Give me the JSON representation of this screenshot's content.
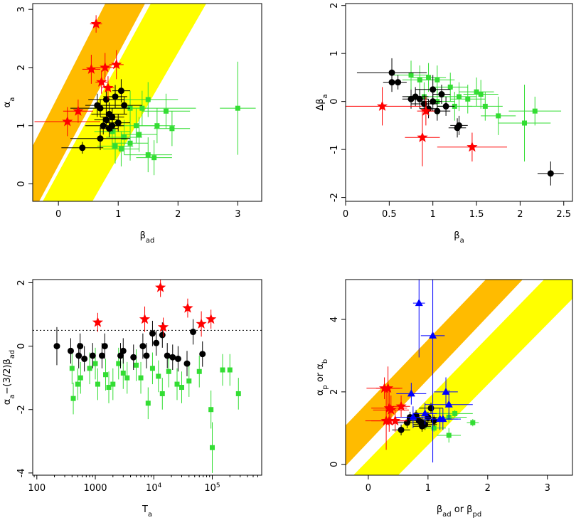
{
  "chart_data": [
    {
      "type": "scatter",
      "xlabel": [
        {
          "t": "β"
        },
        {
          "t": "ad",
          "sub": true
        }
      ],
      "ylabel": [
        {
          "t": "α"
        },
        {
          "t": "a",
          "sub": true
        }
      ],
      "xlim": [
        -0.43,
        3.4
      ],
      "ylim": [
        -0.3,
        3.1
      ],
      "xticks": [
        0,
        1,
        2,
        3
      ],
      "yticks": [
        0,
        1,
        2,
        3
      ],
      "series": [
        {
          "color": "#33dd33",
          "marker": "square",
          "x": [
            3.0,
            1.2,
            1.5,
            1.6,
            1.3,
            1.4,
            1.9,
            1.65,
            1.1,
            0.95,
            1.05,
            1.5,
            1.2,
            1.8,
            0.9,
            1.35
          ],
          "values": [
            1.3,
            0.7,
            0.5,
            0.45,
            1.0,
            1.3,
            0.95,
            1.0,
            0.8,
            0.65,
            0.6,
            1.45,
            1.3,
            1.25,
            0.9,
            0.85
          ],
          "xerr": [
            0.3,
            0.3,
            0.4,
            0.3,
            0.4,
            0.9,
            0.3,
            0.3,
            0.3,
            0.3,
            0.3,
            0.5,
            0.3,
            0.4,
            0.3,
            0.3
          ],
          "yerr": [
            0.8,
            0.3,
            0.3,
            0.3,
            0.3,
            0.3,
            0.3,
            0.3,
            0.3,
            0.3,
            0.3,
            0.3,
            0.3,
            0.3,
            0.3,
            0.3
          ]
        },
        {
          "color": "#000000",
          "marker": "circle",
          "x": [
            0.4,
            0.7,
            0.75,
            0.8,
            0.85,
            0.9,
            0.95,
            1.05,
            0.8,
            0.7,
            0.65,
            1.1,
            0.9,
            0.85,
            1.0
          ],
          "values": [
            0.62,
            0.78,
            1.0,
            1.1,
            1.2,
            1.15,
            1.5,
            1.6,
            1.45,
            1.3,
            1.35,
            1.35,
            1.0,
            0.95,
            1.05
          ],
          "xerr": [
            0.35,
            0.5,
            0.3,
            0.2,
            0.3,
            0.2,
            0.2,
            0.15,
            0.3,
            0.5,
            0.2,
            0.3,
            0.2,
            0.15,
            0.2
          ],
          "yerr": [
            0.1,
            0.2,
            0.15,
            0.15,
            0.2,
            0.15,
            0.2,
            0.2,
            0.2,
            0.15,
            0.2,
            0.15,
            0.1,
            0.15,
            0.15
          ]
        },
        {
          "color": "#ff0000",
          "marker": "star",
          "x": [
            0.63,
            0.55,
            0.78,
            0.97,
            0.72,
            0.83,
            0.33,
            0.15
          ],
          "values": [
            2.75,
            1.97,
            2.0,
            2.05,
            1.75,
            1.65,
            1.25,
            1.07
          ],
          "xerr": [
            0.1,
            0.15,
            0.15,
            0.12,
            0.1,
            0.1,
            0.25,
            0.55
          ],
          "yerr": [
            0.15,
            0.25,
            0.25,
            0.25,
            0.2,
            0.2,
            0.2,
            0.25
          ]
        }
      ]
    },
    {
      "type": "scatter",
      "xlabel": [
        {
          "t": "β"
        },
        {
          "t": "a",
          "sub": true
        }
      ],
      "ylabel": [
        {
          "t": "Δβ"
        },
        {
          "t": "a",
          "sub": true
        }
      ],
      "xlim": [
        0,
        2.6
      ],
      "ylim": [
        -2.08,
        2.04
      ],
      "xticks": [
        0,
        0.5,
        1,
        1.5,
        2,
        2.5
      ],
      "yticks": [
        -2,
        -1,
        0,
        1,
        2
      ],
      "series": [
        {
          "color": "#33dd33",
          "marker": "square",
          "x": [
            0.75,
            0.85,
            0.95,
            1.05,
            1.2,
            1.55,
            1.5,
            1.75,
            2.05,
            2.17,
            1.4,
            1.3,
            1.6,
            0.9,
            1.25,
            1.05
          ],
          "values": [
            0.55,
            0.45,
            0.5,
            0.45,
            0.3,
            0.15,
            0.2,
            -0.3,
            -0.45,
            -0.2,
            0.05,
            0.1,
            -0.1,
            0.1,
            -0.1,
            0.0
          ],
          "xerr": [
            0.2,
            0.2,
            0.2,
            0.2,
            0.2,
            0.2,
            0.2,
            0.2,
            0.3,
            0.3,
            0.2,
            0.2,
            0.2,
            0.2,
            0.2,
            0.2
          ],
          "yerr": [
            0.3,
            0.3,
            0.3,
            0.3,
            0.3,
            0.3,
            0.3,
            0.4,
            0.8,
            0.3,
            0.3,
            0.3,
            0.3,
            0.3,
            0.3,
            0.3
          ]
        },
        {
          "color": "#000000",
          "marker": "circle",
          "x": [
            0.53,
            0.53,
            0.6,
            0.8,
            0.9,
            0.95,
            1.0,
            1.05,
            1.1,
            1.15,
            0.85,
            1.3,
            1.28,
            2.35,
            1.0,
            0.75
          ],
          "values": [
            0.6,
            0.4,
            0.4,
            0.1,
            -0.05,
            -0.15,
            0.25,
            -0.2,
            0.15,
            -0.1,
            0.05,
            -0.5,
            -0.55,
            -1.5,
            0.0,
            0.05
          ],
          "xerr": [
            0.4,
            0.1,
            0.1,
            0.15,
            0.15,
            0.1,
            0.2,
            0.15,
            0.1,
            0.1,
            0.1,
            0.1,
            0.1,
            0.15,
            0.1,
            0.1
          ],
          "yerr": [
            0.3,
            0.2,
            0.15,
            0.2,
            0.2,
            0.2,
            0.3,
            0.2,
            0.2,
            0.2,
            0.2,
            0.2,
            0.2,
            0.25,
            0.2,
            0.2
          ]
        },
        {
          "color": "#ff0000",
          "marker": "star",
          "x": [
            0.42,
            0.88,
            1.45,
            0.92
          ],
          "values": [
            -0.1,
            -0.75,
            -0.95,
            -0.2
          ],
          "xerr": [
            0.45,
            0.2,
            0.4,
            0.1
          ],
          "yerr": [
            0.4,
            0.6,
            0.3,
            0.3
          ]
        }
      ]
    },
    {
      "type": "scatter",
      "xlog": true,
      "hline": 0.5,
      "xlabel": [
        {
          "t": "T"
        },
        {
          "t": "a",
          "sub": true
        }
      ],
      "ylabel": [
        {
          "t": "α"
        },
        {
          "t": "a",
          "sub": true
        },
        {
          "t": "−(3/2)β"
        },
        {
          "t": "ad",
          "sub": true
        }
      ],
      "xlim": [
        85,
        700000
      ],
      "ylim": [
        -4.07,
        2.1
      ],
      "xticks": [
        100,
        1000,
        {
          "value": 10000,
          "label": "10",
          "exp": "4"
        },
        {
          "value": 100000,
          "label": "10",
          "exp": "5"
        }
      ],
      "yticks": [
        -4,
        -2,
        0,
        2
      ],
      "series": [
        {
          "color": "#33dd33",
          "marker": "square",
          "x": [
            400,
            420,
            500,
            560,
            800,
            1000,
            1100,
            1500,
            1700,
            2000,
            2500,
            3000,
            3500,
            5000,
            6000,
            8000,
            9500,
            12000,
            14000,
            18000,
            25000,
            30000,
            40000,
            60000,
            95000,
            100000,
            150000,
            200000,
            280000
          ],
          "values": [
            -0.7,
            -1.65,
            -1.2,
            -1.0,
            -0.7,
            -0.55,
            -1.2,
            -0.9,
            -1.3,
            -1.2,
            -0.55,
            -0.85,
            -1.0,
            -0.6,
            -1.0,
            -1.8,
            -0.7,
            -0.95,
            -1.5,
            -0.8,
            -1.2,
            -1.3,
            -1.1,
            -0.8,
            -2.0,
            -3.2,
            -0.75,
            -0.75,
            -1.5
          ],
          "yerr": [
            0.5,
            0.5,
            0.5,
            0.5,
            0.5,
            0.5,
            0.5,
            0.5,
            0.5,
            0.5,
            0.5,
            0.5,
            0.5,
            0.5,
            0.5,
            0.5,
            0.5,
            0.5,
            0.5,
            0.5,
            0.5,
            0.5,
            0.5,
            0.5,
            0.6,
            0.8,
            0.5,
            0.5,
            0.5
          ]
        },
        {
          "color": "#000000",
          "marker": "circle",
          "x": [
            220,
            380,
            520,
            550,
            650,
            900,
            1300,
            1450,
            2700,
            3000,
            4500,
            6500,
            7500,
            9500,
            11000,
            14000,
            17000,
            21000,
            26000,
            37000,
            47000,
            68000
          ],
          "values": [
            0,
            -0.15,
            -0.3,
            0,
            -0.4,
            -0.3,
            -0.3,
            0,
            -0.3,
            -0.15,
            -0.35,
            0,
            -0.3,
            0.4,
            0.1,
            0.35,
            -0.3,
            -0.35,
            -0.4,
            -0.55,
            0.45,
            -0.25
          ],
          "yerr": [
            0.6,
            0.4,
            0.4,
            0.4,
            0.4,
            0.4,
            0.4,
            0.4,
            0.4,
            0.4,
            0.4,
            0.4,
            0.4,
            0.4,
            0.4,
            0.4,
            0.4,
            0.4,
            0.4,
            0.4,
            0.4,
            0.4
          ]
        },
        {
          "color": "#ff0000",
          "marker": "star",
          "x": [
            1100,
            7000,
            13000,
            14500,
            38000,
            65000,
            95000
          ],
          "values": [
            0.75,
            0.85,
            1.85,
            0.6,
            1.2,
            0.7,
            0.85
          ],
          "yerr": [
            0.3,
            0.4,
            0.3,
            0.3,
            0.3,
            0.4,
            0.3
          ]
        }
      ]
    },
    {
      "type": "scatter",
      "xlabel": [
        {
          "t": "β"
        },
        {
          "t": "ad",
          "sub": true
        },
        {
          "t": " or β"
        },
        {
          "t": "pd",
          "sub": true
        }
      ],
      "ylabel": [
        {
          "t": "α"
        },
        {
          "t": "p",
          "sub": true
        },
        {
          "t": " or α"
        },
        {
          "t": "b",
          "sub": true
        }
      ],
      "xlim": [
        -0.38,
        3.42
      ],
      "ylim": [
        -0.3,
        5.1
      ],
      "xticks": [
        0,
        1,
        2,
        3
      ],
      "yticks": [
        0,
        2,
        4
      ],
      "series": [
        {
          "color": "#33dd33",
          "marker": "square",
          "x": [
            1.35,
            1.45,
            1.75,
            1.35,
            1.1
          ],
          "values": [
            1.3,
            1.4,
            1.15,
            0.8,
            1.0
          ],
          "xerr": [
            0.3,
            0.3,
            0.1,
            0.2,
            0.2
          ],
          "yerr": [
            0.15,
            0.1,
            0.1,
            0.2,
            0.1
          ]
        },
        {
          "color": "#000000",
          "marker": "circle",
          "x": [
            0.55,
            0.65,
            0.7,
            0.85,
            0.9,
            0.95,
            1.0,
            1.05,
            0.8,
            1.1,
            0.9
          ],
          "values": [
            0.95,
            1.15,
            1.3,
            1.2,
            1.15,
            1.1,
            1.3,
            1.55,
            1.35,
            1.2,
            1.05
          ],
          "xerr": [
            0.15,
            0.2,
            0.15,
            0.2,
            0.15,
            0.2,
            0.15,
            0.2,
            0.15,
            0.2,
            0.15
          ],
          "yerr": [
            0.15,
            0.15,
            0.15,
            0.15,
            0.15,
            0.15,
            0.15,
            0.15,
            0.15,
            0.15,
            0.15
          ]
        },
        {
          "color": "#0000ff",
          "marker": "triangle",
          "x": [
            0.85,
            1.08,
            0.72,
            1.3,
            1.35,
            0.95,
            1.2,
            1.25,
            0.75
          ],
          "values": [
            4.45,
            3.55,
            1.95,
            2.0,
            1.65,
            1.4,
            1.25,
            1.25,
            1.3
          ],
          "xerr": [
            0.1,
            0.2,
            0.25,
            0.2,
            0.4,
            0.2,
            0.3,
            0.3,
            0.3
          ],
          "yerr": [
            1.5,
            3.5,
            0.3,
            0.4,
            0.4,
            0.3,
            0.3,
            0.3,
            0.3
          ]
        },
        {
          "color": "#ff0000",
          "marker": "star",
          "x": [
            0.27,
            0.33,
            0.35,
            0.38,
            0.3,
            0.55,
            0.45,
            0.35
          ],
          "values": [
            2.1,
            2.1,
            1.55,
            1.5,
            1.2,
            1.6,
            1.2,
            1.2
          ],
          "xerr": [
            0.3,
            0.2,
            0.3,
            0.3,
            0.35,
            0.15,
            0.2,
            0.3
          ],
          "yerr": [
            0.3,
            0.6,
            0.5,
            0.4,
            0.8,
            0.3,
            0.3,
            0.3
          ]
        }
      ]
    }
  ]
}
